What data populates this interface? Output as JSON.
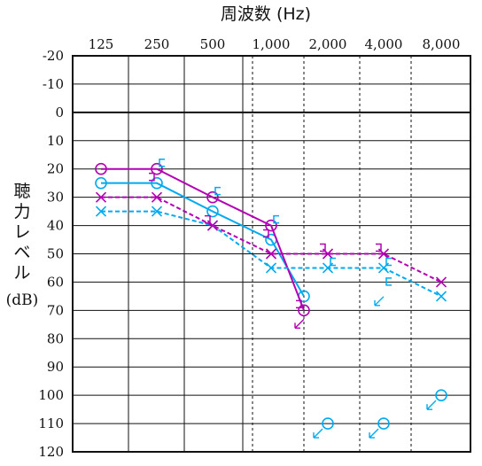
{
  "chart_data": {
    "type": "line",
    "title": "周波数 (Hz)",
    "ylabel_chars": [
      "聴",
      "力",
      "レ",
      "ベ",
      "ル"
    ],
    "yunit": "(dB)",
    "x_categories": [
      "125",
      "250",
      "500",
      "1,000",
      "2,000",
      "4,000",
      "8,000"
    ],
    "y_ticks": [
      -20,
      -10,
      0,
      10,
      20,
      30,
      40,
      50,
      60,
      70,
      80,
      90,
      100,
      110,
      120
    ],
    "ylim": [
      -20,
      120
    ],
    "colors": {
      "right": "#00aaf0",
      "left": "#b400b4"
    },
    "series": [
      {
        "ear": "right",
        "conduction": "air",
        "marker": "circle",
        "line": "solid",
        "points": [
          [
            "125",
            25
          ],
          [
            "250",
            25
          ],
          [
            "500",
            35
          ],
          [
            "1,000",
            45
          ],
          [
            "1.5k",
            65
          ]
        ]
      },
      {
        "ear": "left",
        "conduction": "air",
        "marker": "circle",
        "line": "solid",
        "points": [
          [
            "125",
            20
          ],
          [
            "250",
            20
          ],
          [
            "500",
            30
          ],
          [
            "1,000",
            40
          ],
          [
            "1.5k",
            70
          ]
        ]
      },
      {
        "ear": "right",
        "conduction": "masked-air",
        "marker": "x",
        "line": "dashed",
        "points": [
          [
            "125",
            35
          ],
          [
            "250",
            35
          ],
          [
            "500",
            40
          ],
          [
            "1,000",
            55
          ],
          [
            "2,000",
            55
          ],
          [
            "4,000",
            55
          ],
          [
            "8,000",
            65
          ]
        ]
      },
      {
        "ear": "left",
        "conduction": "masked-air",
        "marker": "x",
        "line": "dashed",
        "points": [
          [
            "125",
            30
          ],
          [
            "250",
            30
          ],
          [
            "500",
            40
          ],
          [
            "1,000",
            50
          ],
          [
            "2,000",
            50
          ],
          [
            "4,000",
            50
          ],
          [
            "8,000",
            60
          ]
        ]
      },
      {
        "ear": "right",
        "conduction": "masked-bone",
        "marker": "bracket",
        "line": "none",
        "points": [
          [
            "250",
            20
          ],
          [
            "500",
            30
          ],
          [
            "1,000",
            40
          ],
          [
            "2,000",
            55
          ],
          [
            "4,000",
            55
          ]
        ]
      },
      {
        "ear": "left",
        "conduction": "masked-bone",
        "marker": "bracket",
        "line": "none",
        "points": [
          [
            "250",
            25
          ],
          [
            "500",
            40
          ],
          [
            "1,000",
            45
          ],
          [
            "2,000",
            50
          ],
          [
            "4,000",
            50
          ]
        ]
      }
    ],
    "no_response": [
      {
        "ear": "right",
        "marker": "circle",
        "x": "2,000",
        "value": 110
      },
      {
        "ear": "right",
        "marker": "circle",
        "x": "4,000",
        "value": 110
      },
      {
        "ear": "right",
        "marker": "circle",
        "x": "8,000",
        "value": 100
      },
      {
        "ear": "right",
        "marker": "bracket",
        "x": "4,000",
        "value": 62
      },
      {
        "ear": "left",
        "marker": "bracket",
        "x": "1.5k",
        "value": 70
      }
    ]
  }
}
